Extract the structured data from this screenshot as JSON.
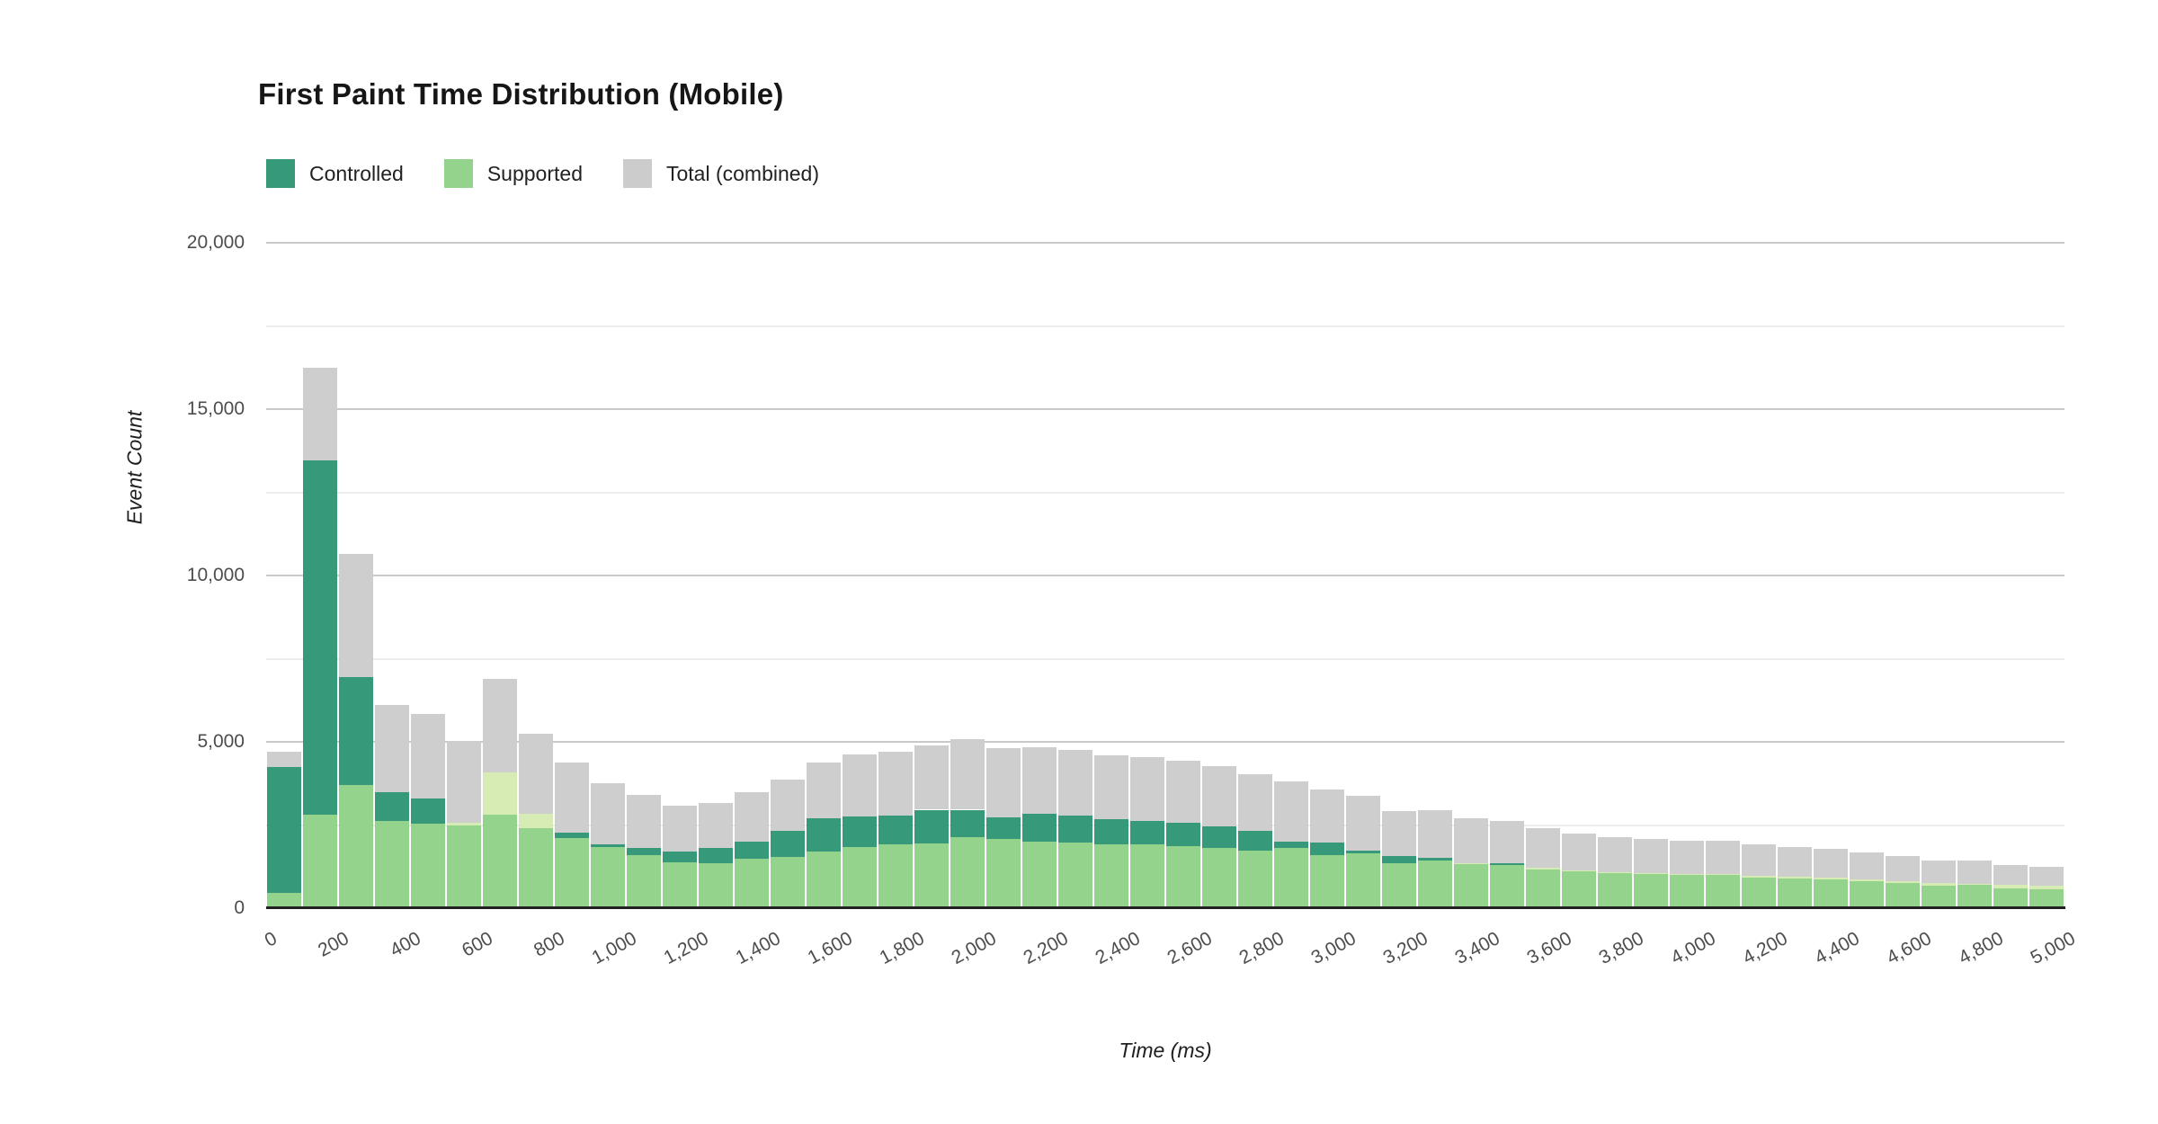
{
  "page": {
    "background": "#ffffff"
  },
  "chart": {
    "title": "First Paint Time Distribution (Mobile)",
    "x_axis_title": "Time (ms)",
    "y_axis_title": "Event Count",
    "legend": [
      {
        "label": "Controlled",
        "color": "#36997a"
      },
      {
        "label": "Supported",
        "color": "#94d38b"
      },
      {
        "label": "Total (combined)",
        "color": "#cccccc"
      }
    ]
  },
  "chart_data": {
    "type": "bar",
    "subtype": "overlapped-histogram (Controlled and Supported drawn from zero; gray = combined total)",
    "title": "First Paint Time Distribution (Mobile)",
    "xlabel": "Time (ms)",
    "ylabel": "Event Count",
    "bin_width_ms": 100,
    "x_range_ms": [
      0,
      5000
    ],
    "ylim": [
      0,
      20000
    ],
    "y_tick_values": [
      0,
      5000,
      10000,
      15000,
      20000
    ],
    "y_tick_labels": [
      "0",
      "5,000",
      "10,000",
      "15,000",
      "20,000"
    ],
    "minor_gridline_interval": 2500,
    "x_tick_interval_ms": 200,
    "x_tick_labels": [
      "0",
      "200",
      "400",
      "600",
      "800",
      "1,000",
      "1,200",
      "1,400",
      "1,600",
      "1,800",
      "2,000",
      "2,200",
      "2,400",
      "2,600",
      "2,800",
      "3,000",
      "3,200",
      "3,400",
      "3,600",
      "3,800",
      "4,000",
      "4,200",
      "4,400",
      "4,600",
      "4,800",
      "5,000"
    ],
    "colors": {
      "controlled": "#36997a",
      "supported_overlap": "#94d38b",
      "supported_excess": "#d7ebb5",
      "total_remainder": "#cecece"
    },
    "series": [
      {
        "name": "Controlled",
        "values": [
          4250,
          13450,
          6950,
          3500,
          3300,
          2480,
          2800,
          2400,
          2280,
          1920,
          1800,
          1710,
          1800,
          1990,
          2330,
          2690,
          2760,
          2790,
          2960,
          2960,
          2740,
          2840,
          2790,
          2670,
          2620,
          2570,
          2470,
          2320,
          2010,
          1970,
          1740,
          1560,
          1520,
          1330,
          1340,
          1170,
          1110,
          1050,
          1020,
          1010,
          990,
          930,
          890,
          870,
          810,
          760,
          680,
          700,
          590,
          570
        ]
      },
      {
        "name": "Supported",
        "values": [
          450,
          2800,
          3700,
          2620,
          2550,
          2560,
          4080,
          2850,
          2100,
          1840,
          1600,
          1380,
          1350,
          1490,
          1540,
          1700,
          1850,
          1910,
          1940,
          2130,
          2080,
          1990,
          1970,
          1920,
          1920,
          1860,
          1800,
          1720,
          1810,
          1600,
          1650,
          1350,
          1440,
          1360,
          1290,
          1230,
          1140,
          1080,
          1060,
          1030,
          1040,
          980,
          940,
          920,
          870,
          800,
          745,
          740,
          700,
          670
        ]
      },
      {
        "name": "Total (combined)",
        "values": [
          4700,
          16250,
          10650,
          6120,
          5850,
          5040,
          6880,
          5250,
          4380,
          3760,
          3400,
          3090,
          3150,
          3480,
          3870,
          4390,
          4610,
          4700,
          4900,
          5090,
          4820,
          4830,
          4760,
          4590,
          4540,
          4430,
          4270,
          4040,
          3820,
          3570,
          3390,
          2910,
          2960,
          2690,
          2630,
          2400,
          2250,
          2130,
          2080,
          2040,
          2030,
          1910,
          1830,
          1790,
          1680,
          1560,
          1425,
          1440,
          1290,
          1240
        ]
      }
    ]
  }
}
